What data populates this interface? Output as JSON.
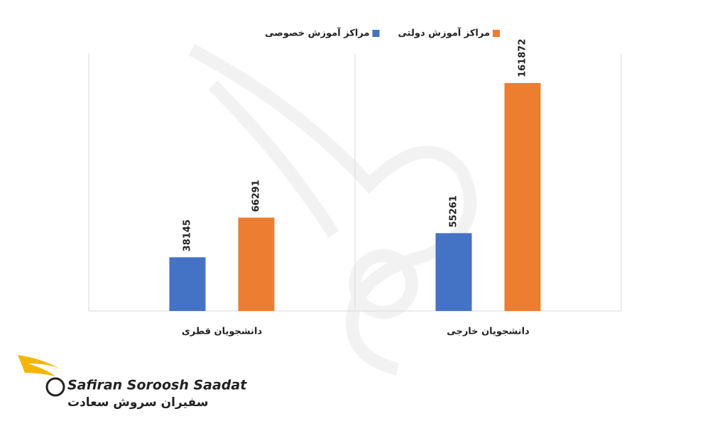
{
  "chart_data": {
    "type": "bar",
    "categories": [
      "دانشجویان قطری",
      "دانشجویان خارجی"
    ],
    "series": [
      {
        "name": "مراکز آموزش خصوصی",
        "color": "#4472c4",
        "values": [
          38145,
          55261
        ]
      },
      {
        "name": "مراکز آموزش دولتی",
        "color": "#ed7d31",
        "values": [
          66291,
          161872
        ]
      }
    ],
    "ylim": [
      0,
      183000
    ],
    "legend": "top"
  },
  "logo": {
    "name_en": "Safiran Soroosh Saadat",
    "name_fa": "سفیران سروش سعادت"
  }
}
